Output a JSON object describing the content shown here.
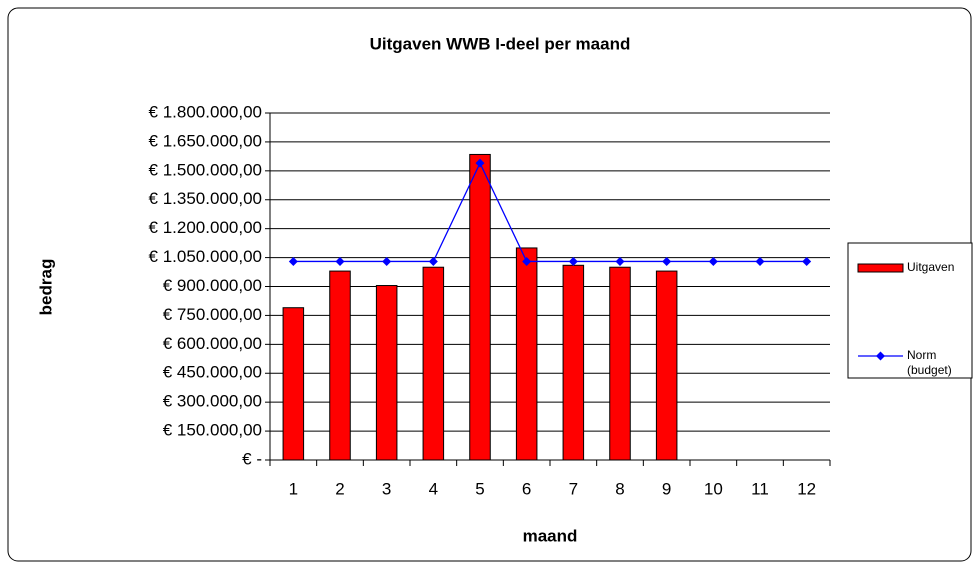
{
  "chart_data": {
    "type": "bar",
    "title": "Uitgaven WWB I-deel per maand",
    "x_label": "maand",
    "y_label": "bedrag",
    "categories": [
      "1",
      "2",
      "3",
      "4",
      "5",
      "6",
      "7",
      "8",
      "9",
      "10",
      "11",
      "12"
    ],
    "series": [
      {
        "name": "Uitgaven",
        "type": "bar",
        "color": "#ff0000",
        "values": [
          790000,
          980000,
          905000,
          1000000,
          1585000,
          1100000,
          1010000,
          1000000,
          980000,
          null,
          null,
          null
        ]
      },
      {
        "name": "Norm (budget)",
        "type": "line",
        "color": "#0000ff",
        "values": [
          1030000,
          1030000,
          1030000,
          1030000,
          1540000,
          1030000,
          1030000,
          1030000,
          1030000,
          1030000,
          1030000,
          1030000
        ]
      }
    ],
    "ylim": [
      0,
      1800000
    ],
    "yticks": [
      {
        "value": 0,
        "label": "€ -"
      },
      {
        "value": 150000,
        "label": "€ 150.000,00"
      },
      {
        "value": 300000,
        "label": "€ 300.000,00"
      },
      {
        "value": 450000,
        "label": "€ 450.000,00"
      },
      {
        "value": 600000,
        "label": "€ 600.000,00"
      },
      {
        "value": 750000,
        "label": "€ 750.000,00"
      },
      {
        "value": 900000,
        "label": "€ 900.000,00"
      },
      {
        "value": 1050000,
        "label": "€ 1.050.000,00"
      },
      {
        "value": 1200000,
        "label": "€ 1.200.000,00"
      },
      {
        "value": 1350000,
        "label": "€ 1.350.000,00"
      },
      {
        "value": 1500000,
        "label": "€ 1.500.000,00"
      },
      {
        "value": 1650000,
        "label": "€ 1.650.000,00"
      },
      {
        "value": 1800000,
        "label": "€ 1.800.000,00"
      }
    ],
    "grid": true,
    "legend": "right"
  }
}
